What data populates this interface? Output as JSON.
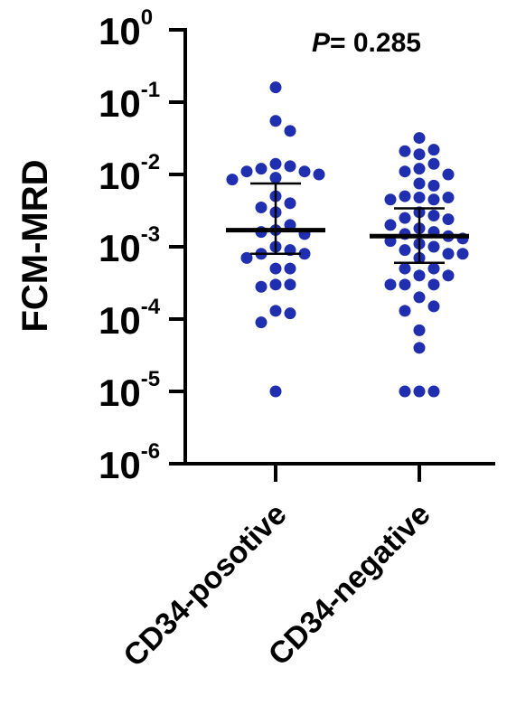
{
  "chart_data": {
    "type": "scatter",
    "ylabel": "FCM-MRD",
    "xlabel": "",
    "yscale": "log",
    "ylim": [
      1e-06,
      1
    ],
    "y_ticks": [
      {
        "value": 1,
        "base": "10",
        "exp": "0"
      },
      {
        "value": 0.1,
        "base": "10",
        "exp": "-1"
      },
      {
        "value": 0.01,
        "base": "10",
        "exp": "-2"
      },
      {
        "value": 0.001,
        "base": "10",
        "exp": "-3"
      },
      {
        "value": 0.0001,
        "base": "10",
        "exp": "-4"
      },
      {
        "value": 1e-05,
        "base": "10",
        "exp": "-5"
      },
      {
        "value": 1e-06,
        "base": "10",
        "exp": "-6"
      }
    ],
    "categories": [
      "CD34-posotive",
      "CD34-negative"
    ],
    "annotation": {
      "italic": "P",
      "text": "= 0.285"
    },
    "point_color": "#1f2fb0",
    "groups": [
      {
        "name": "CD34-posotive",
        "median": 0.0017,
        "q1": 0.0008,
        "q3": 0.0075,
        "values": [
          0.16,
          0.055,
          0.04,
          0.014,
          0.013,
          0.012,
          0.011,
          0.011,
          0.01,
          0.009,
          0.0085,
          0.005,
          0.004,
          0.0035,
          0.003,
          0.002,
          0.0017,
          0.0016,
          0.0015,
          0.001,
          0.0009,
          0.0008,
          0.0008,
          0.0007,
          0.0005,
          0.0005,
          0.0003,
          0.0003,
          0.00028,
          0.00013,
          0.00012,
          9e-05,
          1e-05
        ]
      },
      {
        "name": "CD34-negative",
        "median": 0.0014,
        "q1": 0.0006,
        "q3": 0.0034,
        "values": [
          0.032,
          0.022,
          0.021,
          0.019,
          0.014,
          0.012,
          0.011,
          0.01,
          0.0075,
          0.007,
          0.005,
          0.0048,
          0.0048,
          0.0045,
          0.0045,
          0.003,
          0.0027,
          0.0025,
          0.0024,
          0.002,
          0.0018,
          0.0016,
          0.0015,
          0.0014,
          0.0013,
          0.0012,
          0.0011,
          0.001,
          0.0009,
          0.0008,
          0.0008,
          0.0007,
          0.0005,
          0.0005,
          0.0004,
          0.0004,
          0.0003,
          0.0003,
          0.0003,
          0.0002,
          0.00015,
          0.00013,
          7e-05,
          4e-05,
          1e-05,
          1e-05,
          1e-05
        ]
      }
    ]
  }
}
